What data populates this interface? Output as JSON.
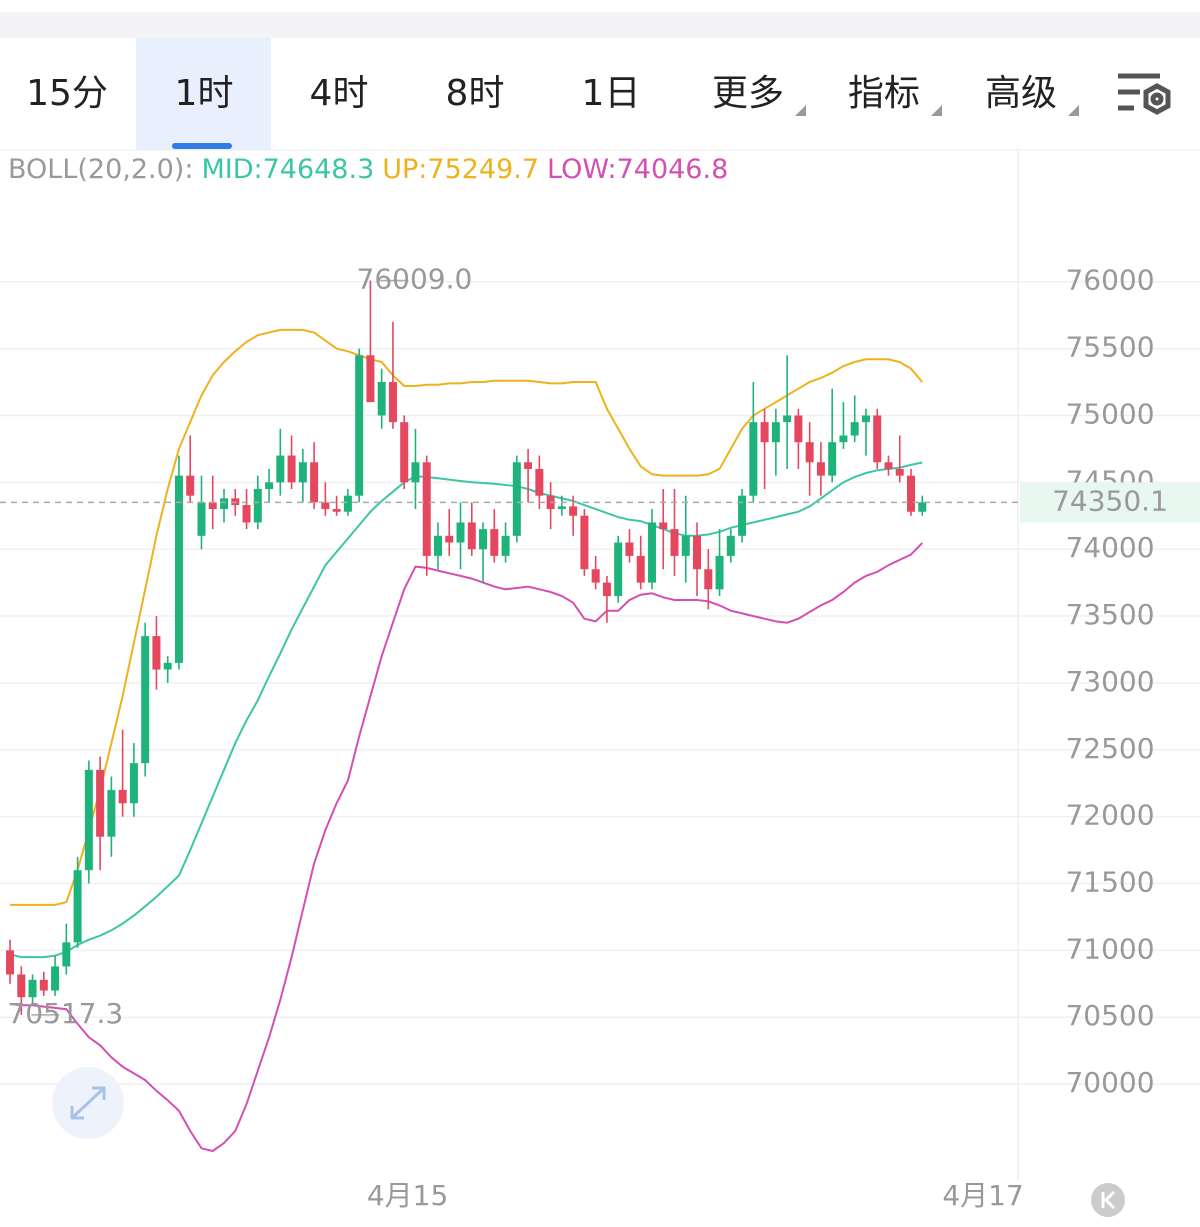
{
  "tabs": [
    "15分",
    "1时",
    "4时",
    "8时",
    "1日",
    "更多",
    "指标",
    "高级"
  ],
  "chart_data": {
    "type": "candlestick",
    "indicator_label": "BOLL(20,2.0):",
    "up_color": "#1fb37c",
    "down_color": "#e5475e",
    "open": [
      71000,
      70820,
      70650,
      70780,
      70700,
      70880,
      71060,
      71600,
      72350,
      71850,
      72200,
      72100,
      72400,
      73350,
      73100,
      73150,
      74550,
      74100,
      74350,
      74300,
      74380,
      74330,
      74200,
      74450,
      74500,
      74700,
      74500,
      74650,
      74350,
      74300,
      74280,
      74400,
      75450,
      75000,
      75250,
      74950,
      74500,
      74650,
      73950,
      74100,
      74050,
      74200,
      74000,
      74150,
      73950,
      74100,
      74650,
      74600,
      74400,
      74300,
      74320,
      74250,
      73850,
      73750,
      73650,
      74050,
      73950,
      73750,
      74200,
      74150,
      73950,
      74100,
      73850,
      73700,
      73950,
      74100,
      74400,
      74950,
      74800,
      74950,
      75000,
      74800,
      74650,
      74550,
      74800,
      74850,
      74950,
      75000,
      74650,
      74600,
      74550,
      74280
    ],
    "high": [
      71080,
      70880,
      70820,
      70840,
      70960,
      71200,
      71700,
      72420,
      72450,
      72300,
      72650,
      72550,
      73450,
      73500,
      73200,
      74700,
      74850,
      74550,
      74550,
      74450,
      74450,
      74450,
      74550,
      74600,
      74900,
      74850,
      74750,
      74800,
      74500,
      74400,
      74450,
      75500,
      76009,
      75350,
      75700,
      75000,
      74900,
      74700,
      74200,
      74300,
      74350,
      74350,
      74200,
      74300,
      74200,
      74700,
      74750,
      74700,
      74500,
      74400,
      74400,
      74300,
      73950,
      73800,
      74100,
      74150,
      74100,
      74300,
      74450,
      74450,
      74400,
      74200,
      74000,
      74150,
      74150,
      74450,
      75250,
      75050,
      75050,
      75450,
      75050,
      74950,
      74800,
      75200,
      75100,
      75150,
      75050,
      75050,
      74700,
      74850,
      74600,
      74400
    ],
    "low": [
      70750,
      70517.3,
      70600,
      70660,
      70660,
      70820,
      71020,
      71500,
      71600,
      71700,
      72000,
      72000,
      72300,
      72950,
      73000,
      73100,
      74350,
      74000,
      74150,
      74200,
      74250,
      74150,
      74150,
      74350,
      74400,
      74450,
      74350,
      74300,
      74250,
      74250,
      74250,
      74350,
      75100,
      74900,
      74900,
      74450,
      74300,
      73800,
      73850,
      73950,
      73850,
      73950,
      73750,
      73900,
      73900,
      74050,
      74350,
      74300,
      74150,
      74250,
      74100,
      73800,
      73700,
      73450,
      73600,
      73900,
      73700,
      73700,
      73850,
      73800,
      73750,
      73650,
      73550,
      73650,
      73900,
      74050,
      74350,
      74450,
      74550,
      74600,
      74600,
      74400,
      74400,
      74500,
      74750,
      74800,
      74700,
      74600,
      74550,
      74500,
      74250,
      74250
    ],
    "close": [
      70820,
      70650,
      70780,
      70700,
      70880,
      71060,
      71600,
      72350,
      71850,
      72200,
      72100,
      72400,
      73350,
      73100,
      73150,
      74550,
      74400,
      74350,
      74300,
      74380,
      74330,
      74200,
      74450,
      74500,
      74700,
      74500,
      74650,
      74350,
      74300,
      74280,
      74400,
      75450,
      75100,
      75250,
      74950,
      74500,
      74650,
      73950,
      74100,
      74050,
      74200,
      74000,
      74150,
      73950,
      74100,
      74650,
      74600,
      74400,
      74300,
      74320,
      74250,
      73850,
      73750,
      73650,
      74050,
      73950,
      73750,
      74200,
      74150,
      73950,
      74100,
      73850,
      73700,
      73950,
      74100,
      74400,
      74950,
      74800,
      74950,
      75000,
      74800,
      74650,
      74550,
      74800,
      74850,
      74950,
      75000,
      74650,
      74600,
      74550,
      74280,
      74350.1
    ],
    "series": [
      {
        "name": "MID:",
        "color": "#3cc6a6",
        "values": [
          70970,
          70950,
          70950,
          70950,
          70960,
          70990,
          71040,
          71080,
          71110,
          71150,
          71200,
          71260,
          71330,
          71400,
          71480,
          71560,
          71750,
          71950,
          72150,
          72350,
          72550,
          72720,
          72870,
          73050,
          73220,
          73400,
          73560,
          73720,
          73880,
          73980,
          74080,
          74180,
          74280,
          74360,
          74430,
          74500,
          74545,
          74540,
          74530,
          74520,
          74510,
          74500,
          74495,
          74490,
          74480,
          74470,
          74450,
          74420,
          74400,
          74380,
          74360,
          74330,
          74300,
          74270,
          74240,
          74220,
          74210,
          74180,
          74150,
          74120,
          74100,
          74100,
          74110,
          74130,
          74160,
          74180,
          74200,
          74220,
          74240,
          74260,
          74280,
          74320,
          74380,
          74440,
          74500,
          74540,
          74570,
          74590,
          74600,
          74610,
          74630,
          74648.3
        ]
      },
      {
        "name": "UP:",
        "color": "#eeb21c",
        "values": [
          71340,
          71340,
          71340,
          71340,
          71340,
          71360,
          71600,
          71900,
          72200,
          72550,
          72900,
          73300,
          73700,
          74100,
          74450,
          74750,
          74950,
          75150,
          75300,
          75400,
          75480,
          75550,
          75600,
          75620,
          75640,
          75640,
          75640,
          75620,
          75560,
          75500,
          75480,
          75450,
          75420,
          75400,
          75300,
          75220,
          75220,
          75230,
          75230,
          75240,
          75240,
          75250,
          75250,
          75260,
          75260,
          75260,
          75260,
          75250,
          75240,
          75240,
          75250,
          75250,
          75250,
          75050,
          74900,
          74750,
          74620,
          74560,
          74550,
          74550,
          74550,
          74550,
          74560,
          74600,
          74750,
          74900,
          75000,
          75050,
          75100,
          75150,
          75200,
          75250,
          75280,
          75320,
          75370,
          75400,
          75420,
          75420,
          75420,
          75400,
          75350,
          75249.7
        ]
      },
      {
        "name": "LOW:",
        "color": "#d44fb2",
        "values": [
          70600,
          70590,
          70590,
          70580,
          70570,
          70560,
          70450,
          70350,
          70290,
          70200,
          70130,
          70080,
          70030,
          69950,
          69880,
          69800,
          69650,
          69520,
          69500,
          69560,
          69650,
          69850,
          70100,
          70350,
          70630,
          70950,
          71300,
          71650,
          71900,
          72100,
          72270,
          72600,
          72900,
          73200,
          73450,
          73700,
          73870,
          73860,
          73840,
          73820,
          73800,
          73780,
          73750,
          73720,
          73700,
          73710,
          73720,
          73700,
          73680,
          73650,
          73600,
          73480,
          73460,
          73540,
          73540,
          73620,
          73660,
          73670,
          73640,
          73620,
          73620,
          73620,
          73610,
          73580,
          73540,
          73520,
          73500,
          73480,
          73460,
          73450,
          73480,
          73530,
          73580,
          73620,
          73680,
          73750,
          73800,
          73830,
          73880,
          73920,
          73960,
          74046.8
        ]
      }
    ],
    "annotations": [
      {
        "value": 76009,
        "label": "76009.0"
      },
      70517.3
    ],
    "ylim": [
      69283,
      76985
    ],
    "yticks": [
      70000,
      70500,
      71000,
      71500,
      72000,
      72500,
      73000,
      73500,
      74000,
      74500,
      75000,
      75500,
      76000
    ],
    "xlim": [
      -0.89,
      89.5
    ],
    "xticks": [
      {
        "value": 35.3,
        "label": "4月15"
      },
      {
        "value": 86.4,
        "label": "4月17"
      }
    ],
    "grid": true
  }
}
